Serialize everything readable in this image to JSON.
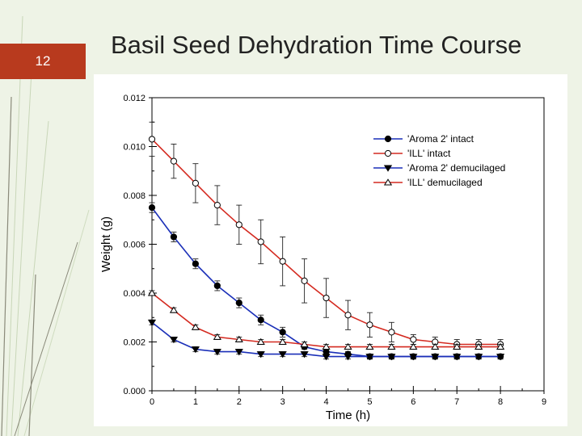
{
  "slide": {
    "number": "12",
    "title": "Basil Seed Dehydration Time Course"
  },
  "colors": {
    "background": "#eef3e6",
    "accent": "#b83a1e",
    "series_blue": "#1a2fb8",
    "series_red": "#d42a20"
  },
  "chart_data": {
    "type": "line",
    "xlabel": "Time (h)",
    "ylabel": "Weight (g)",
    "xlim": [
      0,
      9
    ],
    "ylim": [
      0,
      0.012
    ],
    "x_ticks": [
      "0",
      "1",
      "2",
      "3",
      "4",
      "5",
      "6",
      "7",
      "8",
      "9"
    ],
    "y_ticks": [
      "0.000",
      "0.002",
      "0.004",
      "0.006",
      "0.008",
      "0.010",
      "0.012"
    ],
    "grid": false,
    "legend_position": "top-right",
    "series": [
      {
        "name": "'Aroma 2' intact",
        "color": "#1a2fb8",
        "marker": "filled-circle",
        "x": [
          0,
          0.5,
          1,
          1.5,
          2,
          2.5,
          3,
          3.5,
          4,
          4.5,
          5,
          5.5,
          6,
          6.5,
          7,
          7.5,
          8
        ],
        "y": [
          0.0075,
          0.0063,
          0.0052,
          0.0043,
          0.0036,
          0.0029,
          0.0024,
          0.0018,
          0.0016,
          0.0015,
          0.0014,
          0.0014,
          0.0014,
          0.0014,
          0.0014,
          0.0014,
          0.0014
        ],
        "err": [
          0.0002,
          0.0002,
          0.0002,
          0.0002,
          0.0002,
          0.0002,
          0.0002,
          0.0001,
          0.0001,
          0.0001,
          0.0001,
          0.0001,
          0.0001,
          0.0001,
          0.0001,
          0.0001,
          0.0001
        ]
      },
      {
        "name": "'ILL' intact",
        "color": "#d42a20",
        "marker": "open-circle",
        "x": [
          0,
          0.5,
          1,
          1.5,
          2,
          2.5,
          3,
          3.5,
          4,
          4.5,
          5,
          5.5,
          6,
          6.5,
          7,
          7.5,
          8
        ],
        "y": [
          0.0103,
          0.0094,
          0.0085,
          0.0076,
          0.0068,
          0.0061,
          0.0053,
          0.0045,
          0.0038,
          0.0031,
          0.0027,
          0.0024,
          0.0021,
          0.002,
          0.0019,
          0.0019,
          0.0019
        ],
        "err": [
          0.0007,
          0.0007,
          0.0008,
          0.0008,
          0.0008,
          0.0009,
          0.001,
          0.0009,
          0.0008,
          0.0006,
          0.0005,
          0.0004,
          0.0002,
          0.0002,
          0.0002,
          0.0002,
          0.0002
        ]
      },
      {
        "name": "'Aroma 2' demucilaged",
        "color": "#1a2fb8",
        "marker": "filled-triangle-down",
        "x": [
          0,
          0.5,
          1,
          1.5,
          2,
          2.5,
          3,
          3.5,
          4,
          4.5,
          5,
          5.5,
          6,
          6.5,
          7,
          7.5,
          8
        ],
        "y": [
          0.0028,
          0.0021,
          0.0017,
          0.0016,
          0.0016,
          0.0015,
          0.0015,
          0.0015,
          0.0014,
          0.0014,
          0.0014,
          0.0014,
          0.0014,
          0.0014,
          0.0014,
          0.0014,
          0.0014
        ],
        "err": [
          0.0001,
          0.0001,
          0.0001,
          0.0001,
          0.0001,
          0.0001,
          0.0001,
          0.0001,
          0.0001,
          0.0001,
          0.0001,
          0.0001,
          0.0001,
          0.0001,
          0.0001,
          0.0001,
          0.0001
        ]
      },
      {
        "name": "'ILL' demucilaged",
        "color": "#d42a20",
        "marker": "open-triangle-up",
        "x": [
          0,
          0.5,
          1,
          1.5,
          2,
          2.5,
          3,
          3.5,
          4,
          4.5,
          5,
          5.5,
          6,
          6.5,
          7,
          7.5,
          8
        ],
        "y": [
          0.004,
          0.0033,
          0.0026,
          0.0022,
          0.0021,
          0.002,
          0.002,
          0.0019,
          0.0018,
          0.0018,
          0.0018,
          0.0018,
          0.0018,
          0.0018,
          0.0018,
          0.0018,
          0.0018
        ],
        "err": [
          0.0001,
          0.0001,
          0.0001,
          0.0001,
          0.0001,
          0.0001,
          0.0001,
          0.0001,
          0.0001,
          0.0001,
          0.0001,
          0.0001,
          0.0001,
          0.0001,
          0.0001,
          0.0001,
          0.0001
        ]
      }
    ]
  }
}
